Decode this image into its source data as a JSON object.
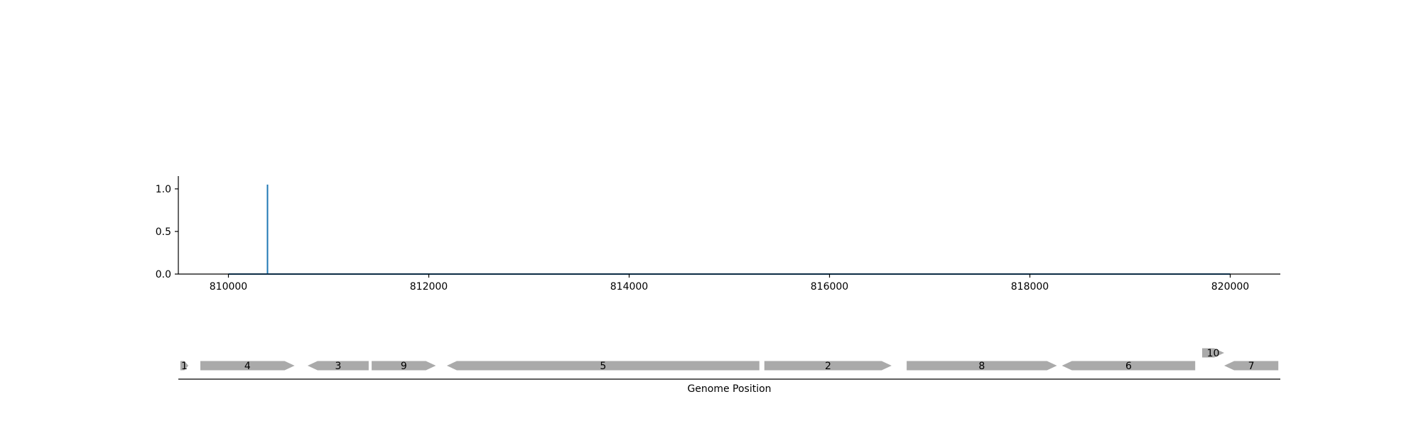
{
  "chart_data": [
    {
      "type": "line",
      "title": "",
      "xlabel": "",
      "ylabel": "",
      "xlim": [
        809500,
        820500
      ],
      "ylim": [
        0,
        1.15
      ],
      "x_ticks": [
        810000,
        812000,
        814000,
        816000,
        818000,
        820000
      ],
      "x_tick_labels": [
        "810000",
        "812000",
        "814000",
        "816000",
        "818000",
        "820000"
      ],
      "y_ticks": [
        0,
        0.5,
        1.0
      ],
      "y_tick_labels": [
        "0.0",
        "0.5",
        "1.0"
      ],
      "grid": false,
      "color": "#1f77b4",
      "series": [
        {
          "x": [
            810000,
            810390,
            810390,
            810390,
            810390,
            820000
          ],
          "values": [
            0,
            0,
            1.05,
            1.05,
            0,
            0
          ]
        }
      ]
    },
    {
      "type": "gene-track",
      "xlabel": "Genome Position",
      "xlim": [
        809500,
        820500
      ],
      "color": "#aaaaaa",
      "genes": [
        {
          "label": "1",
          "start": 809520,
          "end": 809600,
          "strand": "+",
          "row": 0
        },
        {
          "label": "4",
          "start": 809720,
          "end": 810660,
          "strand": "+",
          "row": 0
        },
        {
          "label": "3",
          "start": 810790,
          "end": 811400,
          "strand": "-",
          "row": 0
        },
        {
          "label": "9",
          "start": 811430,
          "end": 812070,
          "strand": "+",
          "row": 0
        },
        {
          "label": "5",
          "start": 812180,
          "end": 815300,
          "strand": "-",
          "row": 0
        },
        {
          "label": "2",
          "start": 815350,
          "end": 816620,
          "strand": "+",
          "row": 0
        },
        {
          "label": "8",
          "start": 816770,
          "end": 818270,
          "strand": "+",
          "row": 0
        },
        {
          "label": "6",
          "start": 818320,
          "end": 819650,
          "strand": "-",
          "row": 0
        },
        {
          "label": "10",
          "start": 819720,
          "end": 819940,
          "strand": "+",
          "row": 1
        },
        {
          "label": "7",
          "start": 819940,
          "end": 820480,
          "strand": "-",
          "row": 0
        }
      ]
    }
  ]
}
